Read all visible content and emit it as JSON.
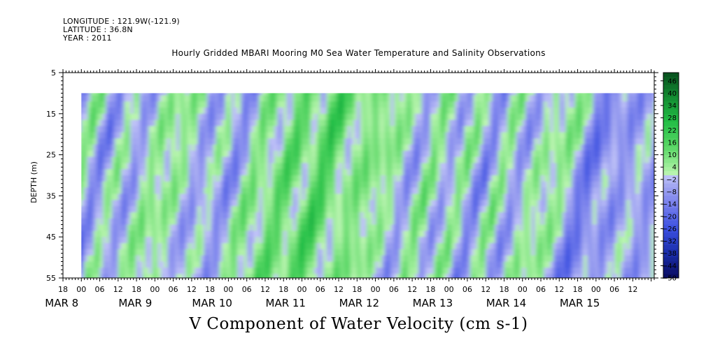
{
  "header": {
    "longitude": "LONGITUDE : 121.9W(-121.9)",
    "latitude": "LATITUDE : 36.8N",
    "year": "YEAR : 2011"
  },
  "chart_data": {
    "type": "heatmap",
    "title": "Hourly Gridded MBARI Mooring M0 Sea Water Temperature and Salinity Observations",
    "xlabel": "V Component of Water Velocity (cm s-1)",
    "ylabel": "DEPTH (m)",
    "ylim": [
      55,
      5
    ],
    "y_ticks": [
      5,
      15,
      25,
      35,
      45,
      55
    ],
    "data_depth_range": [
      10,
      55
    ],
    "x_start": "2011-03-07 18:00",
    "x_end": "2011-03-15 19:00",
    "x_hour_ticks": [
      "18",
      "00",
      "06",
      "12",
      "18",
      "00",
      "06",
      "12",
      "18",
      "00",
      "06",
      "12",
      "18",
      "00",
      "06",
      "12",
      "18",
      "00",
      "06",
      "12",
      "18",
      "00",
      "06",
      "12",
      "18",
      "00",
      "06",
      "12",
      "18",
      "00",
      "06",
      "12"
    ],
    "x_day_labels": [
      "MAR 8",
      "MAR 9",
      "MAR 10",
      "MAR 11",
      "MAR 12",
      "MAR 13",
      "MAR 14",
      "MAR 15"
    ],
    "colorbar": {
      "min": -50,
      "max": 50,
      "labels": [
        "46",
        "40",
        "34",
        "28",
        "22",
        "16",
        "10",
        "4",
        "-2",
        "-8",
        "-14",
        "-20",
        "-26",
        "-32",
        "-38",
        "-44",
        "-50"
      ]
    },
    "v_component_profile": [
      {
        "time": "03-08 00",
        "v": -8
      },
      {
        "time": "03-08 06",
        "v": 6
      },
      {
        "time": "03-08 12",
        "v": -12
      },
      {
        "time": "03-08 18",
        "v": 2
      },
      {
        "time": "03-09 00",
        "v": -6
      },
      {
        "time": "03-09 06",
        "v": 4
      },
      {
        "time": "03-09 12",
        "v": 10
      },
      {
        "time": "03-09 18",
        "v": -10
      },
      {
        "time": "03-10 00",
        "v": 4
      },
      {
        "time": "03-10 06",
        "v": -14
      },
      {
        "time": "03-10 12",
        "v": 6
      },
      {
        "time": "03-10 18",
        "v": 2
      },
      {
        "time": "03-11 00",
        "v": 14
      },
      {
        "time": "03-11 06",
        "v": 4
      },
      {
        "time": "03-11 12",
        "v": 18
      },
      {
        "time": "03-11 18",
        "v": 8
      },
      {
        "time": "03-12 00",
        "v": 2
      },
      {
        "time": "03-12 06",
        "v": 12
      },
      {
        "time": "03-12 12",
        "v": 0
      },
      {
        "time": "03-12 18",
        "v": -6
      },
      {
        "time": "03-13 00",
        "v": 6
      },
      {
        "time": "03-13 06",
        "v": -4
      },
      {
        "time": "03-13 12",
        "v": 4
      },
      {
        "time": "03-13 18",
        "v": -12
      },
      {
        "time": "03-14 00",
        "v": 6
      },
      {
        "time": "03-14 06",
        "v": -8
      },
      {
        "time": "03-14 12",
        "v": 2
      },
      {
        "time": "03-14 18",
        "v": 10
      },
      {
        "time": "03-15 00",
        "v": -10
      },
      {
        "time": "03-15 06",
        "v": -14
      },
      {
        "time": "03-15 12",
        "v": -6
      }
    ]
  },
  "colors": {
    "strong_positive": "#0a6b28",
    "positive": "#5fd06a",
    "weak_positive": "#a6ef9f",
    "weak_negative": "#a8adf2",
    "negative": "#6e78e8",
    "strong_negative": "#0b0f6b"
  }
}
